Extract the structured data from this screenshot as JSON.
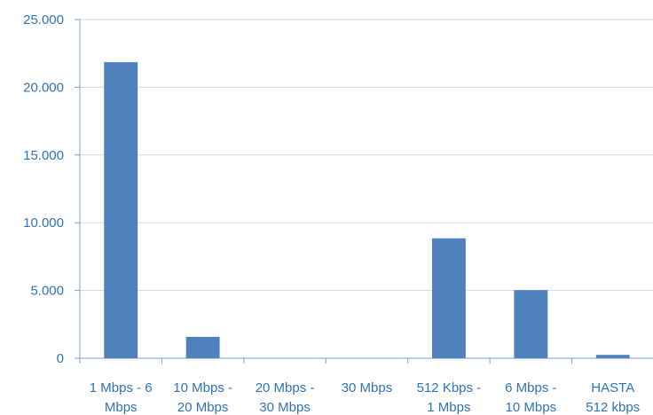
{
  "chart_data": {
    "type": "bar",
    "categories": [
      [
        "1 Mbps - 6",
        "Mbps"
      ],
      [
        "10 Mbps -",
        "20 Mbps"
      ],
      [
        "20 Mbps -",
        "30 Mbps"
      ],
      [
        "30 Mbps"
      ],
      [
        "512 Kbps -",
        "1 Mbps"
      ],
      [
        "6 Mbps -",
        "10 Mbps"
      ],
      [
        "HASTA",
        "512 kbps"
      ]
    ],
    "values": [
      21850,
      1580,
      0,
      0,
      8850,
      5030,
      250
    ],
    "ylim": [
      0,
      25000
    ],
    "yticks": [
      {
        "value": 0,
        "label": "0"
      },
      {
        "value": 5000,
        "label": "5.000"
      },
      {
        "value": 10000,
        "label": "10.000"
      },
      {
        "value": 15000,
        "label": "15.000"
      },
      {
        "value": 20000,
        "label": "20.000"
      },
      {
        "value": 25000,
        "label": "25.000"
      }
    ],
    "grid": true,
    "colors": {
      "bar": "#4f81bd",
      "grid": "#c6d9f1",
      "axis": "#7f9fcf",
      "text": "#2e74b5"
    }
  }
}
